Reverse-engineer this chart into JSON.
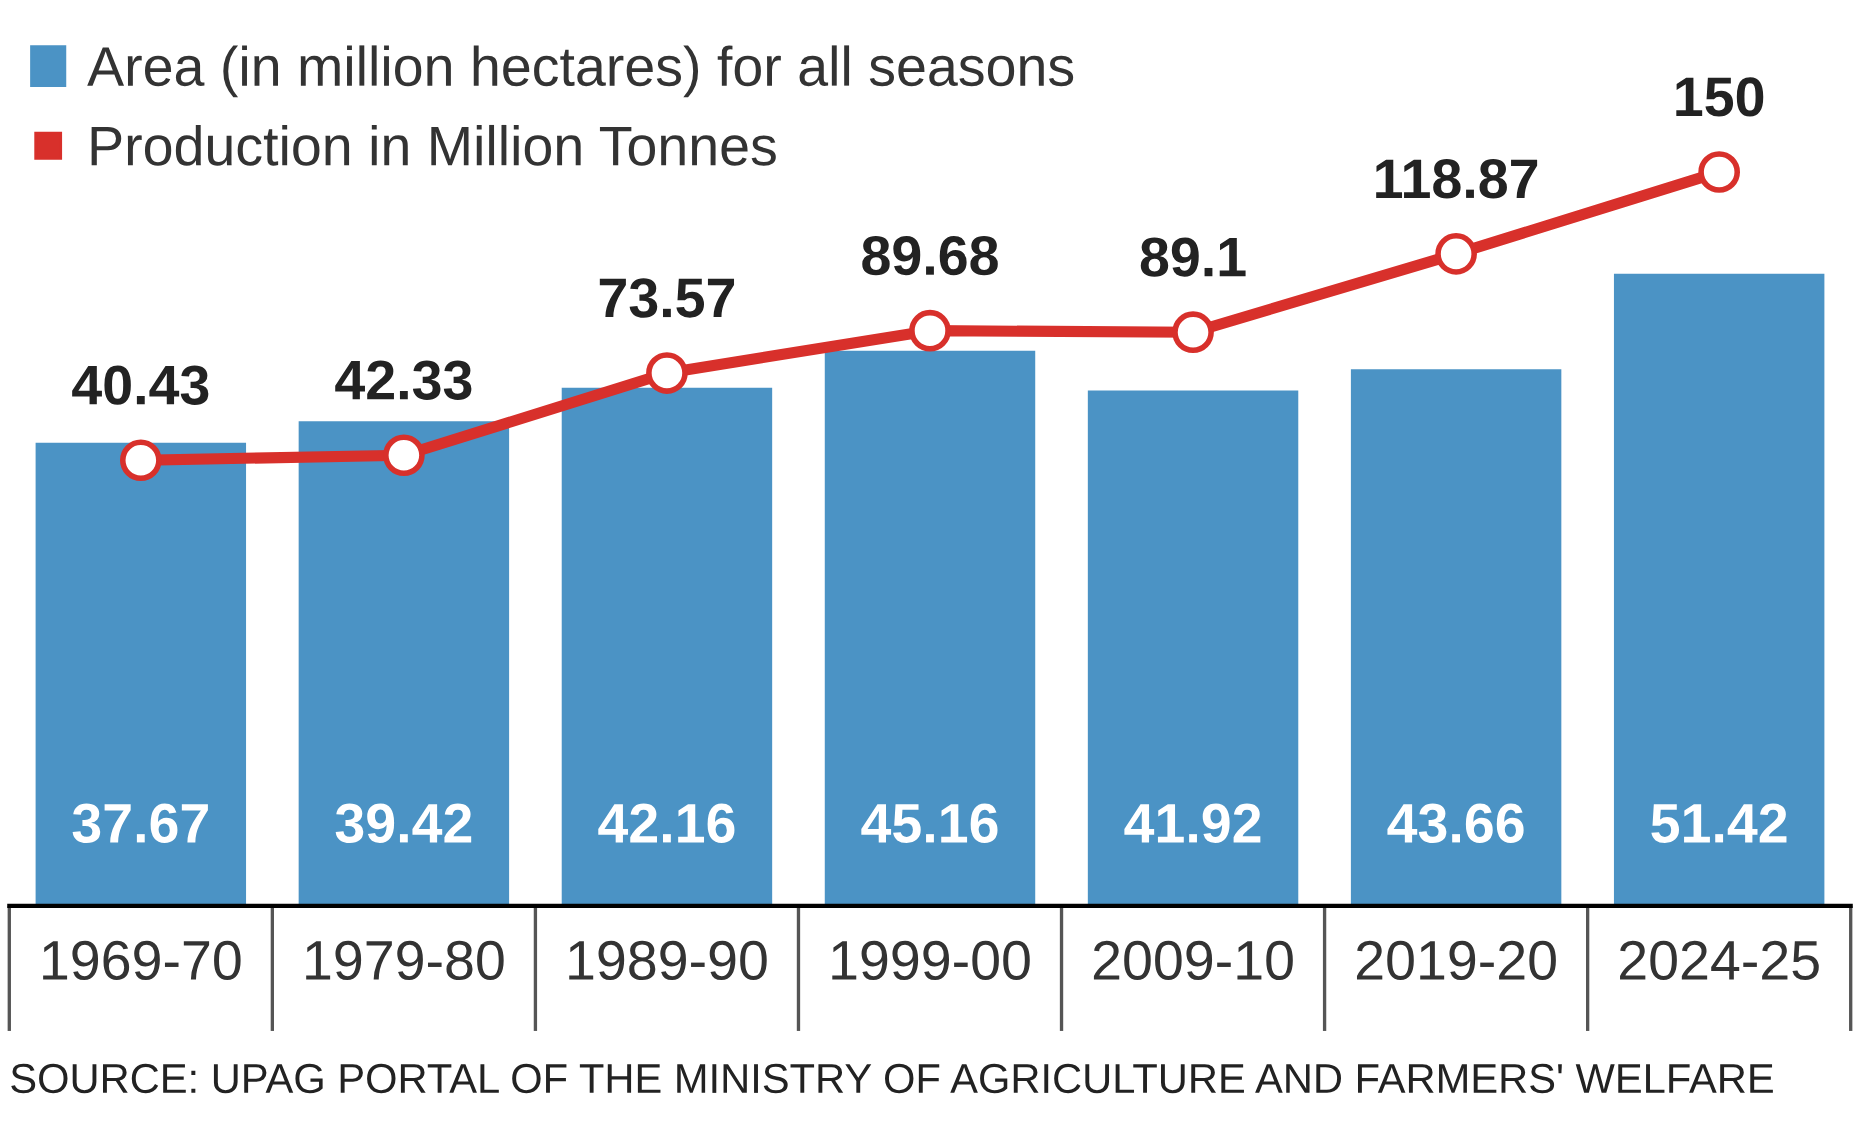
{
  "chart_data": {
    "type": "bar",
    "categories": [
      "1969-70",
      "1979-80",
      "1989-90",
      "1999-00",
      "2009-10",
      "2019-20",
      "2024-25"
    ],
    "series": [
      {
        "name": "Area (in million hectares) for all seasons",
        "color": "#4b93c5",
        "values": [
          37.67,
          39.42,
          42.16,
          45.16,
          41.92,
          43.66,
          51.42
        ]
      },
      {
        "name": "Production in Million Tonnes",
        "type": "line",
        "axis": "y2",
        "color": "#d8302b",
        "values": [
          40.43,
          42.33,
          73.57,
          89.68,
          89.1,
          118.87,
          150
        ]
      }
    ],
    "ylim": [
      0,
      70.4
    ],
    "y2lim": [
      -129,
      200
    ],
    "tick_labels": "x",
    "data_labels": true,
    "legend": "top left",
    "marker": "circle",
    "line_style": "solid",
    "grid": false,
    "annotations": [
      "SOURCE: UPAG PORTAL OF THE MINISTRY OF AGRICULTURE AND FARMERS' WELFARE"
    ]
  }
}
